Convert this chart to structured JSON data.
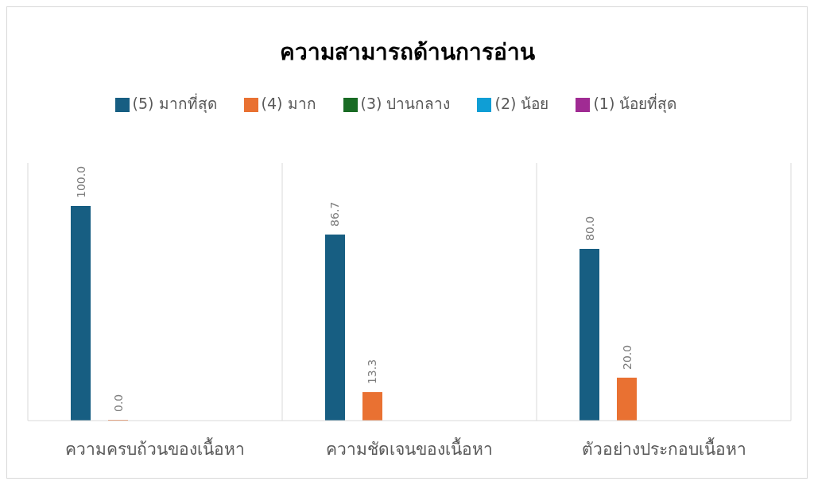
{
  "chart_data": {
    "type": "bar",
    "title": "ความสามารถด้านการอ่าน",
    "categories": [
      "ความครบถ้วนของเนื้อหา",
      "ความชัดเจนของเนื้อหา",
      "ตัวอย่างประกอบเนื้อหา"
    ],
    "series": [
      {
        "name": "(5) มากที่สุด",
        "color": "#175e82",
        "values": [
          100.0,
          86.7,
          80.0
        ],
        "value_labels": [
          "100.0",
          "86.7",
          "80.0"
        ]
      },
      {
        "name": "(4) มาก",
        "color": "#e97132",
        "values": [
          0.0,
          13.3,
          20.0
        ],
        "value_labels": [
          "0.0",
          "13.3",
          "20.0"
        ]
      },
      {
        "name": "(3) ปานกลาง",
        "color": "#196b24",
        "values": [
          null,
          null,
          null
        ]
      },
      {
        "name": "(2) น้อย",
        "color": "#0f9ed5",
        "values": [
          null,
          null,
          null
        ]
      },
      {
        "name": "(1) น้อยที่สุด",
        "color": "#a02b93",
        "values": [
          null,
          null,
          null
        ]
      }
    ],
    "ylim": [
      0,
      120
    ],
    "grid": "x",
    "legend": "top"
  }
}
